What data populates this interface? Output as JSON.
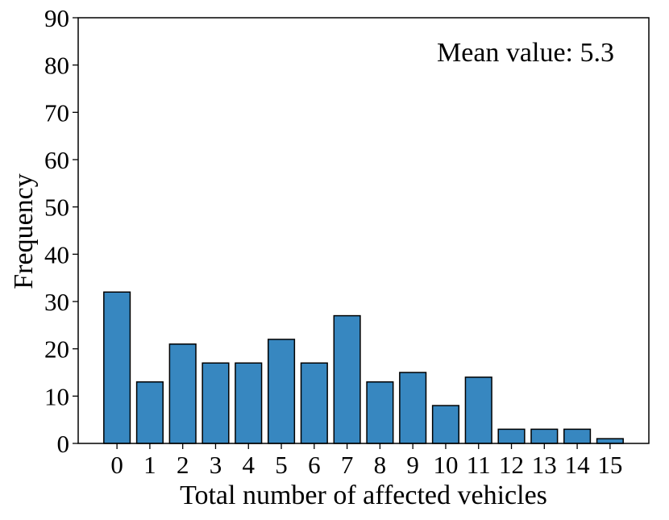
{
  "chart_data": {
    "type": "bar",
    "x_label": "Total number of affected vehicles",
    "y_label": "Frequency",
    "annotation": "Mean value: 5.3",
    "categories": [
      "0",
      "1",
      "2",
      "3",
      "4",
      "5",
      "6",
      "7",
      "8",
      "9",
      "10",
      "11",
      "12",
      "13",
      "14",
      "15"
    ],
    "values": [
      32,
      13,
      21,
      17,
      17,
      22,
      17,
      27,
      13,
      15,
      8,
      14,
      3,
      3,
      3,
      1
    ],
    "color": "#3787c0",
    "ylim": [
      0,
      90
    ],
    "yticks": [
      0,
      10,
      20,
      30,
      40,
      50,
      60,
      70,
      80,
      90
    ],
    "grid": false
  }
}
